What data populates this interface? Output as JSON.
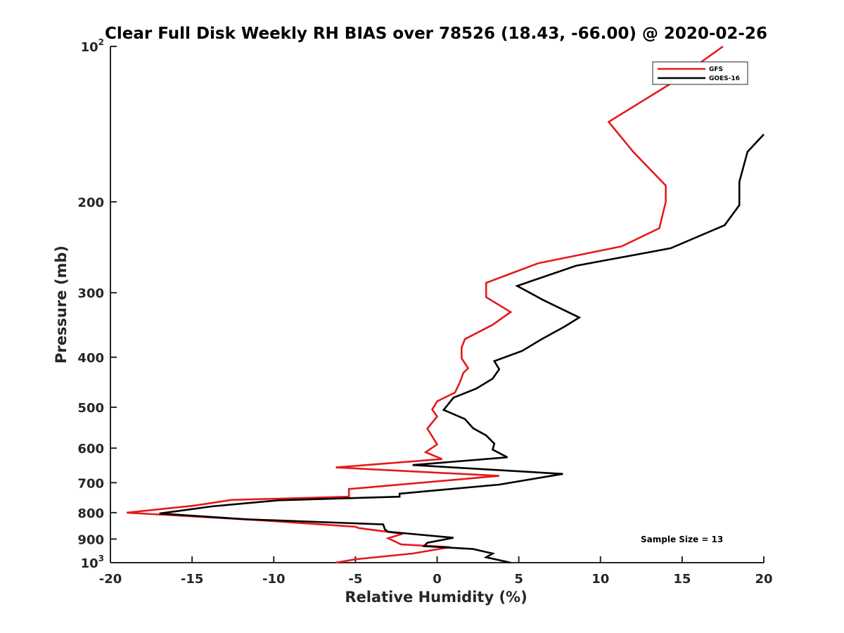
{
  "chart_data": {
    "type": "line",
    "title": "Clear Full Disk Weekly RH BIAS over 78526 (18.43, -66.00) @ 2020-02-26",
    "xlabel": "Relative Humidity (%)",
    "ylabel": "Pressure (mb)",
    "xlim": [
      -20,
      20
    ],
    "ylim": [
      100,
      1000
    ],
    "y_scale": "log",
    "y_reversed": true,
    "x_ticks": [
      -20,
      -15,
      -10,
      -5,
      0,
      5,
      10,
      15,
      20
    ],
    "x_tick_labels": [
      "-20",
      "-15",
      "-10",
      "-5",
      "0",
      "5",
      "10",
      "15",
      "20"
    ],
    "y_ticks": [
      100,
      200,
      300,
      400,
      500,
      600,
      700,
      800,
      900,
      1000
    ],
    "y_tick_labels": [
      {
        "base": "10",
        "exp": "2"
      },
      {
        "base": "200",
        "exp": ""
      },
      {
        "base": "300",
        "exp": ""
      },
      {
        "base": "400",
        "exp": ""
      },
      {
        "base": "500",
        "exp": ""
      },
      {
        "base": "600",
        "exp": ""
      },
      {
        "base": "700",
        "exp": ""
      },
      {
        "base": "800",
        "exp": ""
      },
      {
        "base": "900",
        "exp": ""
      },
      {
        "base": "10",
        "exp": "3"
      }
    ],
    "grid": false,
    "legend_position": "top-right",
    "annotation": "Sample Size = 13",
    "series": [
      {
        "name": "GFS",
        "color": "#e41a1c",
        "points": [
          [
            17.5,
            100
          ],
          [
            14.5,
            117
          ],
          [
            10.5,
            140
          ],
          [
            12.0,
            160
          ],
          [
            14.0,
            186
          ],
          [
            14.0,
            200
          ],
          [
            13.6,
            225
          ],
          [
            11.3,
            244
          ],
          [
            6.2,
            263
          ],
          [
            3.0,
            287
          ],
          [
            3.0,
            306
          ],
          [
            4.5,
            327
          ],
          [
            3.4,
            346
          ],
          [
            1.7,
            369
          ],
          [
            1.5,
            383
          ],
          [
            1.5,
            402
          ],
          [
            1.9,
            420
          ],
          [
            1.6,
            429
          ],
          [
            1.4,
            447
          ],
          [
            1.1,
            468
          ],
          [
            0.0,
            487
          ],
          [
            -0.3,
            505
          ],
          [
            0.0,
            521
          ],
          [
            -0.6,
            550
          ],
          [
            0.0,
            590
          ],
          [
            -0.7,
            611
          ],
          [
            0.3,
            630
          ],
          [
            -6.2,
            654
          ],
          [
            3.8,
            679
          ],
          [
            -5.4,
            720
          ],
          [
            -5.4,
            745
          ],
          [
            -12.6,
            756
          ],
          [
            -14.8,
            775
          ],
          [
            -19.0,
            800
          ],
          [
            -11.0,
            827
          ],
          [
            -5.0,
            852
          ],
          [
            -4.8,
            857
          ],
          [
            -2.1,
            879
          ],
          [
            -3.0,
            897
          ],
          [
            -2.2,
            922
          ],
          [
            0.8,
            933
          ],
          [
            -1.5,
            960
          ],
          [
            -5.0,
            985
          ],
          [
            -6.2,
            1000
          ]
        ]
      },
      {
        "name": "GOES-16",
        "color": "#000000",
        "points": [
          [
            20.0,
            148
          ],
          [
            19.0,
            160
          ],
          [
            18.5,
            183
          ],
          [
            18.5,
            203
          ],
          [
            17.6,
            222
          ],
          [
            14.3,
            246
          ],
          [
            8.5,
            266
          ],
          [
            4.9,
            291
          ],
          [
            6.5,
            310
          ],
          [
            8.7,
            335
          ],
          [
            7.8,
            349
          ],
          [
            6.4,
            369
          ],
          [
            5.2,
            389
          ],
          [
            3.5,
            407
          ],
          [
            3.8,
            422
          ],
          [
            3.4,
            440
          ],
          [
            2.4,
            460
          ],
          [
            1.0,
            479
          ],
          [
            0.4,
            506
          ],
          [
            1.7,
            527
          ],
          [
            2.2,
            549
          ],
          [
            3.0,
            567
          ],
          [
            3.5,
            588
          ],
          [
            3.4,
            604
          ],
          [
            4.3,
            625
          ],
          [
            -1.5,
            647
          ],
          [
            7.7,
            673
          ],
          [
            3.8,
            706
          ],
          [
            -2.3,
            735
          ],
          [
            -2.3,
            745
          ],
          [
            -9.7,
            757
          ],
          [
            -13.8,
            778
          ],
          [
            -17.0,
            803
          ],
          [
            -11.7,
            824
          ],
          [
            -3.3,
            843
          ],
          [
            -3.2,
            862
          ],
          [
            -3.0,
            871
          ],
          [
            1.0,
            895
          ],
          [
            -0.6,
            915
          ],
          [
            -0.8,
            929
          ],
          [
            2.2,
            941
          ],
          [
            3.4,
            960
          ],
          [
            3.0,
            976
          ],
          [
            4.5,
            1000
          ]
        ]
      }
    ]
  }
}
